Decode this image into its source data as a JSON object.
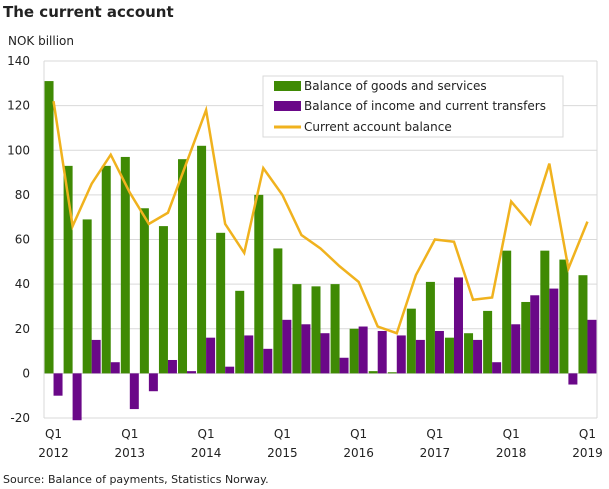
{
  "chart_data": {
    "type": "bar",
    "title": "The current account",
    "ylabel": "NOK billion",
    "source": "Source: Balance of payments, Statistics Norway.",
    "ylim": [
      -20,
      140
    ],
    "yticks": [
      -20,
      0,
      20,
      40,
      60,
      80,
      100,
      120,
      140
    ],
    "grid": true,
    "legend_position": "top-right",
    "x_tick_labels": [
      {
        "quarter": "Q1",
        "year": "2012"
      },
      {
        "quarter": "Q1",
        "year": "2013"
      },
      {
        "quarter": "Q1",
        "year": "2014"
      },
      {
        "quarter": "Q1",
        "year": "2015"
      },
      {
        "quarter": "Q1",
        "year": "2016"
      },
      {
        "quarter": "Q1",
        "year": "2017"
      },
      {
        "quarter": "Q1",
        "year": "2018"
      },
      {
        "quarter": "Q1",
        "year": "2019"
      }
    ],
    "categories": [
      "2012Q1",
      "2012Q2",
      "2012Q3",
      "2012Q4",
      "2013Q1",
      "2013Q2",
      "2013Q3",
      "2013Q4",
      "2014Q1",
      "2014Q2",
      "2014Q3",
      "2014Q4",
      "2015Q1",
      "2015Q2",
      "2015Q3",
      "2015Q4",
      "2016Q1",
      "2016Q2",
      "2016Q3",
      "2016Q4",
      "2017Q1",
      "2017Q2",
      "2017Q3",
      "2017Q4",
      "2018Q1",
      "2018Q2",
      "2018Q3",
      "2018Q4",
      "2019Q1"
    ],
    "series": [
      {
        "name": "Balance of goods and services",
        "kind": "bar",
        "color": "#3f8a04",
        "values": [
          131,
          93,
          69,
          93,
          97,
          74,
          66,
          96,
          102,
          63,
          37,
          80,
          56,
          40,
          39,
          40,
          20,
          1,
          0.5,
          29,
          41,
          16,
          18,
          28,
          55,
          32,
          55,
          51,
          44
        ]
      },
      {
        "name": "Balance of income and current transfers",
        "kind": "bar",
        "color": "#6a0888",
        "values": [
          -10,
          -21,
          15,
          5,
          -16,
          -8,
          6,
          1,
          16,
          3,
          17,
          11,
          24,
          22,
          18,
          7,
          21,
          19,
          17,
          15,
          19,
          43,
          15,
          5,
          22,
          35,
          38,
          -5,
          24
        ]
      },
      {
        "name": "Current account balance",
        "kind": "line",
        "color": "#f0b21e",
        "values": [
          122,
          66,
          85,
          98,
          81,
          67,
          72,
          95,
          118,
          67,
          54,
          92,
          80,
          62,
          56,
          48,
          41,
          21,
          18,
          44,
          60,
          59,
          33,
          34,
          77,
          67,
          94,
          47,
          68
        ]
      }
    ]
  }
}
